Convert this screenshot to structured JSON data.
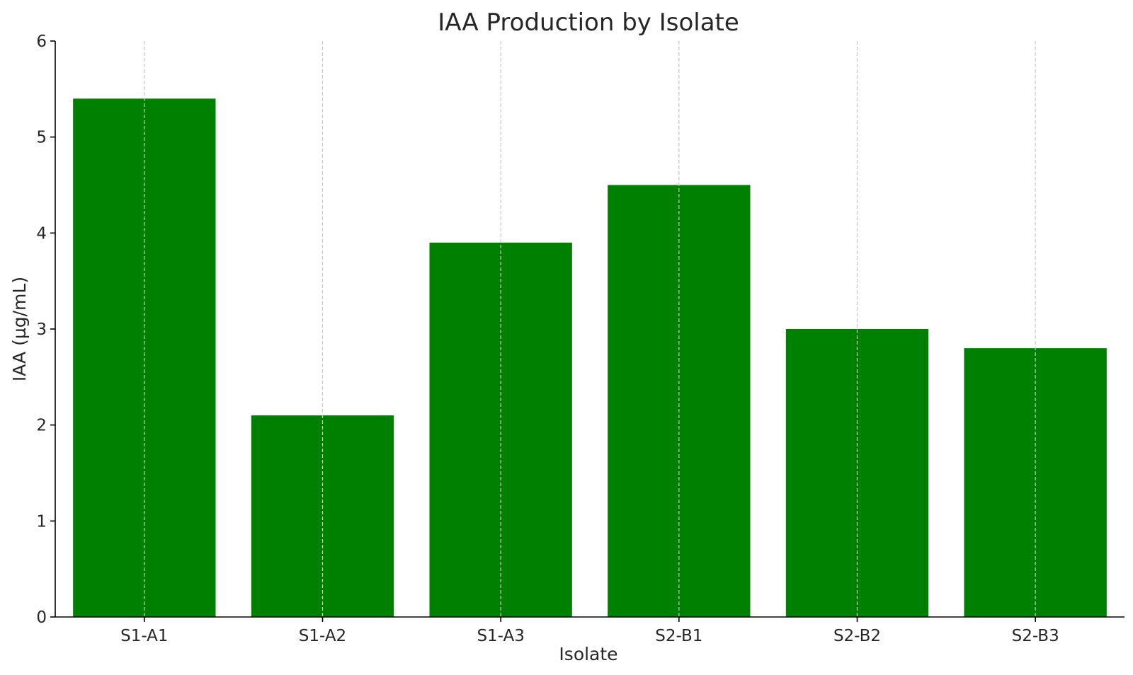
{
  "chart_data": {
    "type": "bar",
    "title": "IAA Production by Isolate",
    "xlabel": "Isolate",
    "ylabel": "IAA (µg/mL)",
    "categories": [
      "S1-A1",
      "S1-A2",
      "S1-A3",
      "S2-B1",
      "S2-B2",
      "S2-B3"
    ],
    "values": [
      5.4,
      2.1,
      3.9,
      4.5,
      3.0,
      2.8
    ],
    "ylim": [
      0,
      6
    ],
    "yticks": [
      "0",
      "1",
      "2",
      "3",
      "4",
      "5",
      "6"
    ],
    "grid": "vertical dashed at category centers",
    "bar_color": "#008000"
  }
}
